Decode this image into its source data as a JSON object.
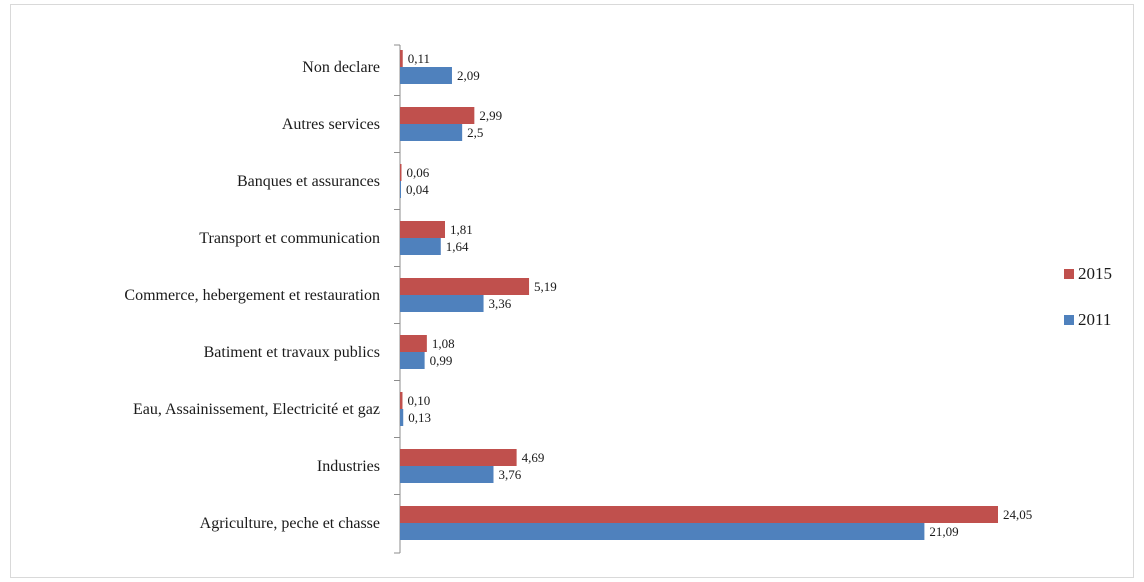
{
  "chart_data": {
    "type": "bar",
    "orientation": "horizontal",
    "categories": [
      "Non declare",
      "Autres services",
      "Banques et assurances",
      "Transport et communication",
      "Commerce, hebergement et restauration",
      "Batiment et travaux publics",
      "Eau, Assainissement, Electricité et gaz",
      "Industries",
      "Agriculture, peche et chasse"
    ],
    "series": [
      {
        "name": "2015",
        "color": "#c0504d",
        "values": [
          0.11,
          2.99,
          0.06,
          1.81,
          5.19,
          1.08,
          0.1,
          4.69,
          24.05
        ],
        "labels": [
          "0,11",
          "2,99",
          "0,06",
          "1,81",
          "5,19",
          "1,08",
          "0,10",
          "4,69",
          "24,05"
        ]
      },
      {
        "name": "2011",
        "color": "#4f81bd",
        "values": [
          2.09,
          2.5,
          0.04,
          1.64,
          3.36,
          0.99,
          0.13,
          3.76,
          21.09
        ],
        "labels": [
          "2,09",
          "2,5",
          "0,04",
          "1,64",
          "3,36",
          "0,99",
          "0,13",
          "3,76",
          "21,09"
        ]
      }
    ],
    "title": "",
    "xlabel": "",
    "ylabel": "",
    "xlim": [
      0,
      24.05
    ],
    "grid": false,
    "legend": "right"
  }
}
